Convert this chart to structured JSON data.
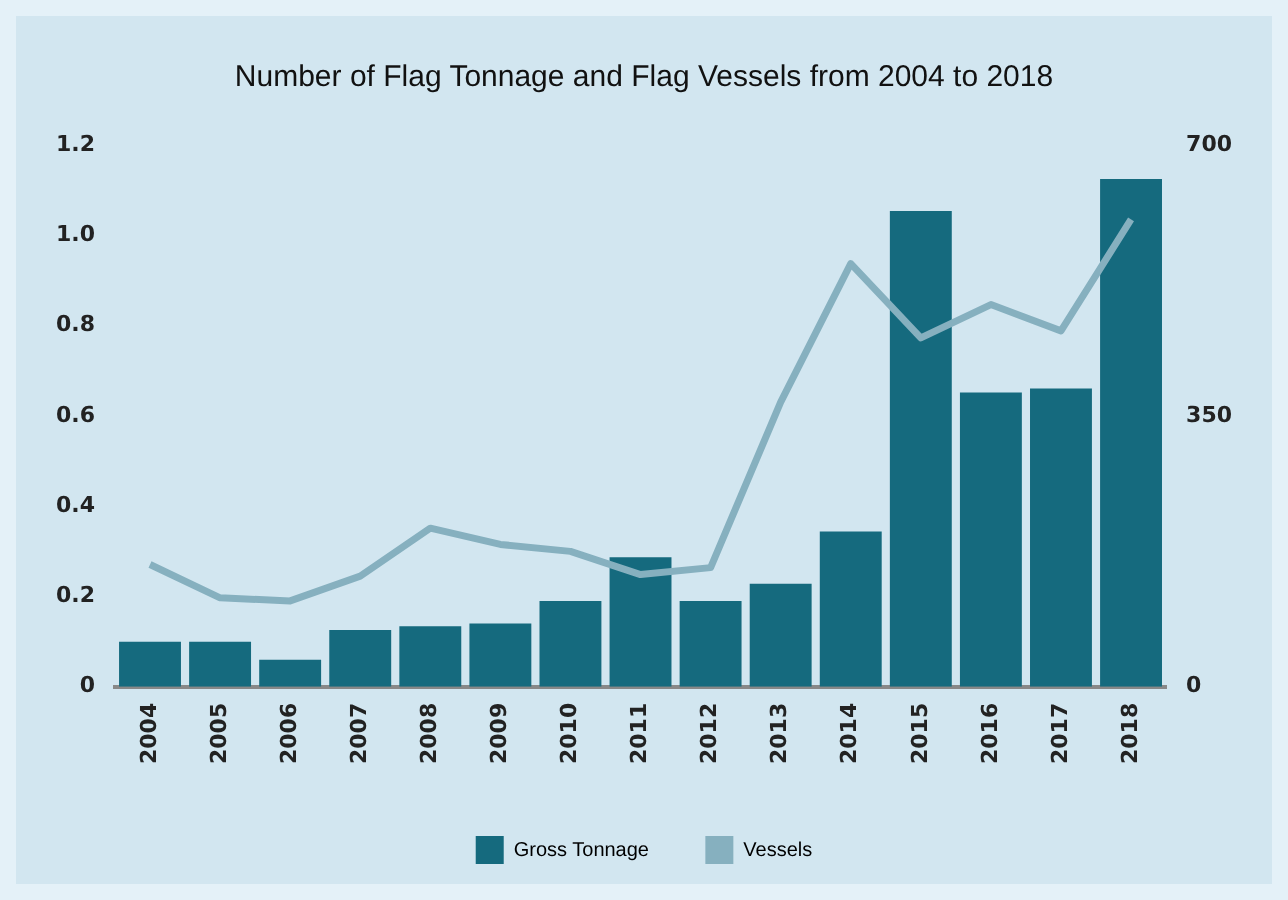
{
  "chart_data": {
    "type": "bar",
    "title": "Number of Flag Tonnage and Flag Vessels from 2004 to 2018",
    "categories": [
      "2004",
      "2005",
      "2006",
      "2007",
      "2008",
      "2009",
      "2010",
      "2011",
      "2012",
      "2013",
      "2014",
      "2015",
      "2016",
      "2017",
      "2018"
    ],
    "series": [
      {
        "name": "Gross Tonnage",
        "color": "#156a7e",
        "values": [
          0.1,
          0.1,
          0.06,
          0.126,
          0.134,
          0.14,
          0.19,
          0.287,
          0.19,
          0.228,
          0.344,
          1.054,
          0.652,
          0.661,
          1.125
        ]
      },
      {
        "name": "Vessels",
        "type": "line",
        "axis": "y2",
        "color": "#86b0bf",
        "values": [
          158,
          115,
          111,
          143,
          205,
          184,
          175,
          145,
          154,
          368,
          547,
          451,
          494,
          460,
          604
        ]
      }
    ],
    "ylim": [
      0,
      1.2
    ],
    "yticks": [
      0,
      0.2,
      0.4,
      0.6,
      0.8,
      {
        "value": 1,
        "label": "1.0"
      },
      1.2
    ],
    "y2lim": [
      0,
      700
    ],
    "y2ticks": [
      0,
      350,
      700
    ],
    "grid": false,
    "legend": "bottom",
    "marker": "none",
    "line_style": "solid"
  }
}
